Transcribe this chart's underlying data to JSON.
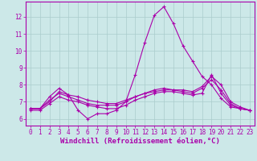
{
  "bg_color": "#cce8e8",
  "line_color": "#aa00aa",
  "grid_color": "#aacccc",
  "xlabel": "Windchill (Refroidissement éolien,°C)",
  "ylabel_ticks": [
    6,
    7,
    8,
    9,
    10,
    11,
    12
  ],
  "xlim": [
    -0.5,
    23.5
  ],
  "ylim": [
    5.6,
    12.9
  ],
  "lines": [
    {
      "x": [
        0,
        1,
        2,
        3,
        4,
        5,
        6,
        7,
        8,
        9,
        10,
        11,
        12,
        13,
        14,
        15,
        16,
        17,
        18,
        19,
        20,
        21,
        22,
        23
      ],
      "y": [
        6.6,
        6.6,
        7.3,
        7.8,
        7.4,
        6.5,
        6.0,
        6.3,
        6.3,
        6.5,
        7.0,
        8.6,
        10.5,
        12.1,
        12.6,
        11.6,
        10.3,
        9.4,
        8.5,
        8.0,
        7.2,
        6.7,
        6.6,
        6.5
      ]
    },
    {
      "x": [
        0,
        1,
        2,
        3,
        4,
        5,
        6,
        7,
        8,
        9,
        10,
        11,
        12,
        13,
        14,
        15,
        16,
        17,
        18,
        19,
        20,
        21,
        22,
        23
      ],
      "y": [
        6.6,
        6.6,
        7.0,
        7.6,
        7.4,
        7.3,
        7.1,
        7.0,
        6.9,
        6.9,
        7.1,
        7.3,
        7.5,
        7.6,
        7.7,
        7.7,
        7.7,
        7.6,
        7.9,
        8.5,
        8.0,
        7.0,
        6.7,
        6.5
      ]
    },
    {
      "x": [
        0,
        1,
        2,
        3,
        4,
        5,
        6,
        7,
        8,
        9,
        10,
        11,
        12,
        13,
        14,
        15,
        16,
        17,
        18,
        19,
        20,
        21,
        22,
        23
      ],
      "y": [
        6.6,
        6.6,
        7.1,
        7.5,
        7.3,
        7.1,
        6.9,
        6.8,
        6.8,
        6.8,
        7.0,
        7.3,
        7.5,
        7.7,
        7.8,
        7.7,
        7.6,
        7.5,
        7.8,
        8.3,
        7.7,
        6.9,
        6.6,
        6.5
      ]
    },
    {
      "x": [
        0,
        1,
        2,
        3,
        4,
        5,
        6,
        7,
        8,
        9,
        10,
        11,
        12,
        13,
        14,
        15,
        16,
        17,
        18,
        19,
        20,
        21,
        22,
        23
      ],
      "y": [
        6.5,
        6.5,
        6.9,
        7.3,
        7.1,
        7.0,
        6.8,
        6.7,
        6.6,
        6.6,
        6.8,
        7.1,
        7.3,
        7.5,
        7.6,
        7.6,
        7.5,
        7.4,
        7.5,
        8.6,
        7.5,
        6.8,
        6.6,
        6.5
      ]
    }
  ],
  "xtick_labels": [
    "0",
    "1",
    "2",
    "3",
    "4",
    "5",
    "6",
    "7",
    "8",
    "9",
    "10",
    "11",
    "12",
    "13",
    "14",
    "15",
    "16",
    "17",
    "18",
    "19",
    "20",
    "21",
    "22",
    "23"
  ],
  "xlabel_fontsize": 6.5,
  "tick_fontsize": 5.5
}
